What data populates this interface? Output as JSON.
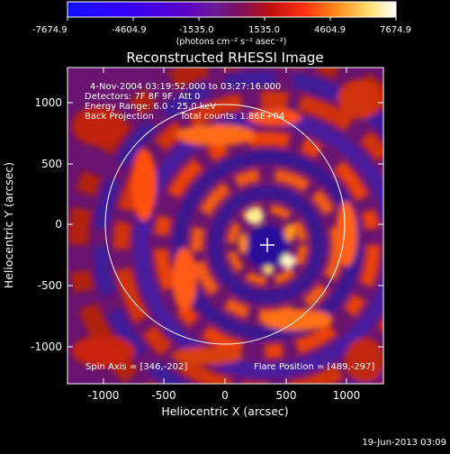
{
  "colorbar": {
    "ticks": [
      "-7674.9",
      "-4604.9",
      "-1535.0",
      "1535.0",
      "4604.9",
      "7674.9"
    ],
    "units": "(photons cm⁻² s⁻¹ asec⁻²)"
  },
  "title": "Reconstructed RHESSI Image",
  "info": {
    "line1": "4-Nov-2004 03:19:52.000 to 03:27:16.000",
    "line2": "Detectors: 7F 8F 9F, Att 0",
    "line3": "Energy Range: 6.0 - 25.0 keV",
    "line4_a": "Back Projection",
    "line4_b": "Total counts: 1.86E+04"
  },
  "footer_left": "Spin Axis = [346,-202]",
  "footer_right": "Flare Position = [489,-297]",
  "axes": {
    "xlabel": "Heliocentric X (arcsec)",
    "ylabel": "Heliocentric Y (arcsec)",
    "xticks": [
      "-1000",
      "-500",
      "0",
      "500",
      "1000"
    ],
    "yticks": [
      "1000",
      "500",
      "0",
      "-500",
      "-1000"
    ]
  },
  "date_stamp": "19-Jun-2013 03:09",
  "colors": {
    "colorbar_stops": [
      "#1010ff",
      "#2a00ff",
      "#5a00c8",
      "#6a1aa0",
      "#7a1060",
      "#c01010",
      "#ff3010",
      "#ff8a18",
      "#ffe070",
      "#ffffff"
    ]
  }
}
